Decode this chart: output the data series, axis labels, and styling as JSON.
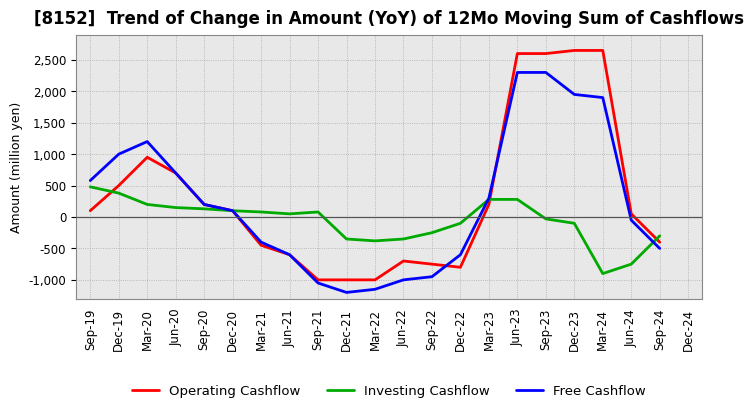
{
  "title": "[8152]  Trend of Change in Amount (YoY) of 12Mo Moving Sum of Cashflows",
  "ylabel": "Amount (million yen)",
  "x_labels": [
    "Sep-19",
    "Dec-19",
    "Mar-20",
    "Jun-20",
    "Sep-20",
    "Dec-20",
    "Mar-21",
    "Jun-21",
    "Sep-21",
    "Dec-21",
    "Mar-22",
    "Jun-22",
    "Sep-22",
    "Dec-22",
    "Mar-23",
    "Jun-23",
    "Sep-23",
    "Dec-23",
    "Mar-24",
    "Jun-24",
    "Sep-24",
    "Dec-24"
  ],
  "operating_cashflow": [
    100,
    500,
    950,
    700,
    200,
    100,
    -450,
    -600,
    -1000,
    -1000,
    -1000,
    -700,
    -750,
    -800,
    200,
    2600,
    2600,
    2650,
    2650,
    50,
    -400,
    null
  ],
  "investing_cashflow": [
    480,
    380,
    200,
    150,
    130,
    100,
    80,
    50,
    80,
    -350,
    -380,
    -350,
    -250,
    -100,
    280,
    280,
    -30,
    -100,
    -900,
    -750,
    -300,
    null
  ],
  "free_cashflow": [
    580,
    1000,
    1200,
    700,
    200,
    100,
    -400,
    -600,
    -1050,
    -1200,
    -1150,
    -1000,
    -950,
    -600,
    300,
    2300,
    2300,
    1950,
    1900,
    -50,
    -500,
    null
  ],
  "operating_color": "#FF0000",
  "investing_color": "#00AA00",
  "free_color": "#0000FF",
  "line_width": 2.0,
  "ylim": [
    -1300,
    2900
  ],
  "yticks": [
    -1000,
    -500,
    0,
    500,
    1000,
    1500,
    2000,
    2500
  ],
  "background_color": "#FFFFFF",
  "plot_bg_color": "#E8E8E8",
  "grid_color": "#AAAAAA",
  "title_fontsize": 12,
  "axis_label_fontsize": 9,
  "tick_fontsize": 8.5,
  "legend_fontsize": 9.5
}
